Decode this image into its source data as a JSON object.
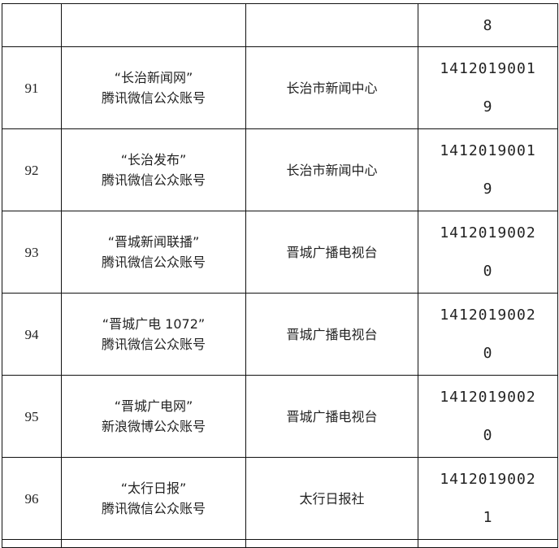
{
  "top_partial_row": {
    "code_tail": "8"
  },
  "rows": [
    {
      "no": "91",
      "name_line1": "“长治新闻网”",
      "name_line2": "腾讯微信公众账号",
      "org": "长治市新闻中心",
      "code_line1": "1412019001",
      "code_line2": "9"
    },
    {
      "no": "92",
      "name_line1": "“长治发布”",
      "name_line2": "腾讯微信公众账号",
      "org": "长治市新闻中心",
      "code_line1": "1412019001",
      "code_line2": "9"
    },
    {
      "no": "93",
      "name_line1": "“晋城新闻联播”",
      "name_line2": "腾讯微信公众账号",
      "org": "晋城广播电视台",
      "code_line1": "1412019002",
      "code_line2": "0"
    },
    {
      "no": "94",
      "name_line1": "“晋城广电 1072”",
      "name_line2": "腾讯微信公众账号",
      "org": "晋城广播电视台",
      "code_line1": "1412019002",
      "code_line2": "0"
    },
    {
      "no": "95",
      "name_line1": "“晋城广电网”",
      "name_line2": "新浪微博公众账号",
      "org": "晋城广播电视台",
      "code_line1": "1412019002",
      "code_line2": "0"
    },
    {
      "no": "96",
      "name_line1": "“太行日报”",
      "name_line2": "腾讯微信公众账号",
      "org": "太行日报社",
      "code_line1": "1412019002",
      "code_line2": "1"
    }
  ]
}
